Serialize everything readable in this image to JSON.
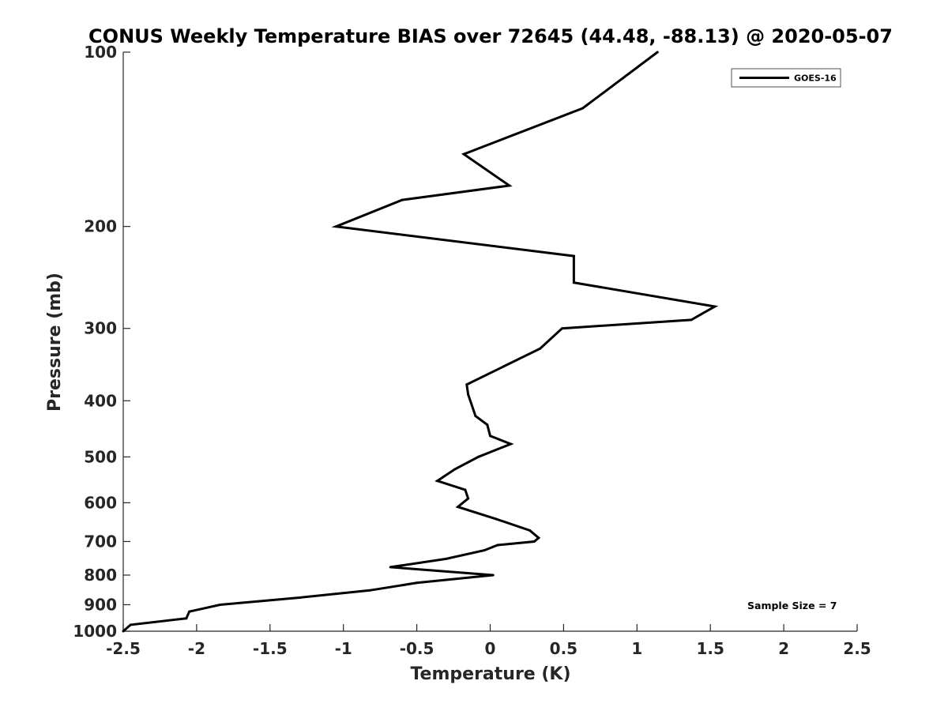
{
  "chart_data": {
    "type": "line",
    "title": "CONUS Weekly Temperature BIAS over 72645 (44.48, -88.13) @ 2020-05-07",
    "xlabel": "Temperature (K)",
    "ylabel": "Pressure (mb)",
    "xlim": [
      -2.5,
      2.5
    ],
    "ylim": [
      1000,
      100
    ],
    "y_scale": "log",
    "y_inverted": true,
    "x_ticks": [
      "-2.5",
      "-2",
      "-1.5",
      "-1",
      "-0.5",
      "0",
      "0.5",
      "1",
      "1.5",
      "2",
      "2.5"
    ],
    "y_ticks": [
      "100",
      "200",
      "300",
      "400",
      "500",
      "600",
      "700",
      "800",
      "900",
      "1000"
    ],
    "grid": false,
    "legend_position": "top-right",
    "series": [
      {
        "name": "GOES-16",
        "color": "#000000",
        "points": [
          {
            "x": 1.14,
            "y": 100
          },
          {
            "x": 0.63,
            "y": 125
          },
          {
            "x": -0.18,
            "y": 150
          },
          {
            "x": 0.13,
            "y": 170
          },
          {
            "x": -0.6,
            "y": 180
          },
          {
            "x": -1.05,
            "y": 200
          },
          {
            "x": 0.57,
            "y": 225
          },
          {
            "x": 0.57,
            "y": 250
          },
          {
            "x": 1.53,
            "y": 275
          },
          {
            "x": 1.37,
            "y": 290
          },
          {
            "x": 0.49,
            "y": 300
          },
          {
            "x": 0.34,
            "y": 325
          },
          {
            "x": -0.16,
            "y": 375
          },
          {
            "x": -0.15,
            "y": 390
          },
          {
            "x": -0.1,
            "y": 425
          },
          {
            "x": -0.02,
            "y": 440
          },
          {
            "x": 0.0,
            "y": 460
          },
          {
            "x": 0.14,
            "y": 475
          },
          {
            "x": -0.08,
            "y": 500
          },
          {
            "x": -0.24,
            "y": 525
          },
          {
            "x": -0.36,
            "y": 550
          },
          {
            "x": -0.17,
            "y": 570
          },
          {
            "x": -0.15,
            "y": 590
          },
          {
            "x": -0.22,
            "y": 610
          },
          {
            "x": 0.04,
            "y": 640
          },
          {
            "x": 0.27,
            "y": 670
          },
          {
            "x": 0.33,
            "y": 690
          },
          {
            "x": 0.3,
            "y": 700
          },
          {
            "x": 0.05,
            "y": 710
          },
          {
            "x": -0.04,
            "y": 725
          },
          {
            "x": -0.3,
            "y": 750
          },
          {
            "x": -0.68,
            "y": 775
          },
          {
            "x": 0.02,
            "y": 800
          },
          {
            "x": -0.5,
            "y": 825
          },
          {
            "x": -0.82,
            "y": 850
          },
          {
            "x": -1.3,
            "y": 875
          },
          {
            "x": -1.84,
            "y": 900
          },
          {
            "x": -2.05,
            "y": 925
          },
          {
            "x": -2.07,
            "y": 950
          },
          {
            "x": -2.45,
            "y": 975
          },
          {
            "x": -2.5,
            "y": 1000
          }
        ]
      }
    ],
    "annotations": [
      "Sample Size = 7"
    ]
  }
}
